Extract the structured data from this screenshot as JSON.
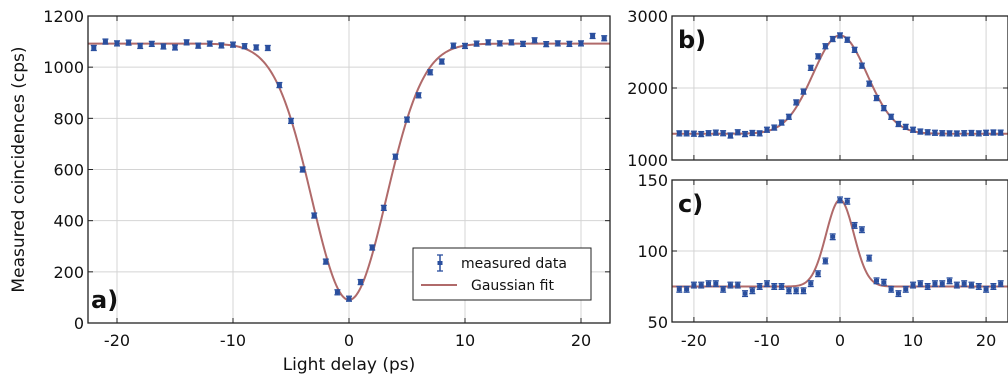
{
  "chart_data": [
    {
      "id": "a",
      "type": "scatter",
      "panel_label": "a)",
      "xlabel": "Light delay (ps)",
      "ylabel": "Measured coincidences (cps)",
      "xlim": [
        -22.5,
        22.5
      ],
      "ylim": [
        0,
        1200
      ],
      "xticks": [
        -20,
        -10,
        0,
        10,
        20
      ],
      "xtick_labels": [
        "-20",
        "-10",
        "0",
        "10",
        "20"
      ],
      "yticks": [
        0,
        200,
        400,
        600,
        800,
        1000,
        1200
      ],
      "ytick_labels": [
        "0",
        "200",
        "400",
        "600",
        "800",
        "1000",
        "1200"
      ],
      "grid": true,
      "legend_position": "bottom-right",
      "legend": [
        "measured data",
        "Gaussian fit"
      ],
      "series": [
        {
          "name": "measured data",
          "style": "errorbar",
          "color": "#2a4f9e",
          "x": [
            -22,
            -21,
            -20,
            -19,
            -18,
            -17,
            -16,
            -15,
            -14,
            -13,
            -12,
            -11,
            -10,
            -9,
            -8,
            -7,
            -6,
            -5,
            -4,
            -3,
            -2,
            -1,
            0,
            1,
            2,
            3,
            4,
            5,
            6,
            7,
            8,
            9,
            10,
            11,
            12,
            13,
            14,
            15,
            16,
            17,
            18,
            19,
            20,
            21,
            22
          ],
          "y": [
            1075,
            1100,
            1093,
            1096,
            1083,
            1091,
            1081,
            1077,
            1097,
            1084,
            1092,
            1085,
            1088,
            1082,
            1077,
            1075,
            930,
            790,
            600,
            420,
            240,
            120,
            95,
            160,
            295,
            450,
            650,
            795,
            890,
            980,
            1022,
            1084,
            1083,
            1092,
            1097,
            1093,
            1097,
            1091,
            1105,
            1090,
            1093,
            1091,
            1093,
            1122,
            1113
          ],
          "yerr": 7
        },
        {
          "name": "Gaussian fit",
          "style": "line",
          "color": "#b06a6a",
          "model": "gaussian",
          "baseline": 1092,
          "amplitude": -1002,
          "center": 0,
          "sigma": 3.2
        }
      ]
    },
    {
      "id": "b",
      "type": "scatter",
      "panel_label": "b)",
      "xlabel": "",
      "ylabel": "",
      "xlim": [
        -23,
        23
      ],
      "ylim": [
        1000,
        3000
      ],
      "xticks": [
        -20,
        -10,
        0,
        10,
        20
      ],
      "yticks": [
        1000,
        2000,
        3000
      ],
      "ytick_labels": [
        "1000",
        "2000",
        "3000"
      ],
      "grid": true,
      "series": [
        {
          "name": "",
          "style": "errorbar",
          "color": "#2a4f9e",
          "x": [
            -22,
            -21,
            -20,
            -19,
            -18,
            -17,
            -16,
            -15,
            -14,
            -13,
            -12,
            -11,
            -10,
            -9,
            -8,
            -7,
            -6,
            -5,
            -4,
            -3,
            -2,
            -1,
            0,
            1,
            2,
            3,
            4,
            5,
            6,
            7,
            8,
            9,
            10,
            11,
            12,
            13,
            14,
            15,
            16,
            17,
            18,
            19,
            20,
            21,
            22
          ],
          "y": [
            1370,
            1370,
            1365,
            1360,
            1372,
            1380,
            1372,
            1340,
            1385,
            1360,
            1375,
            1370,
            1420,
            1450,
            1520,
            1600,
            1800,
            1950,
            2280,
            2440,
            2580,
            2680,
            2730,
            2670,
            2530,
            2310,
            2060,
            1860,
            1720,
            1600,
            1500,
            1460,
            1420,
            1395,
            1385,
            1378,
            1372,
            1370,
            1368,
            1372,
            1375,
            1370,
            1378,
            1382,
            1380
          ],
          "yerr": 12
        },
        {
          "name": "",
          "style": "line",
          "color": "#b06a6a",
          "model": "gaussian",
          "baseline": 1365,
          "amplitude": 1365,
          "center": 0,
          "sigma": 3.7
        }
      ]
    },
    {
      "id": "c",
      "type": "scatter",
      "panel_label": "c)",
      "xlabel": "",
      "ylabel": "",
      "xlim": [
        -23,
        23
      ],
      "ylim": [
        50,
        150
      ],
      "xticks": [
        -20,
        -10,
        0,
        10,
        20
      ],
      "xtick_labels": [
        "-20",
        "-10",
        "0",
        "10",
        "20"
      ],
      "yticks": [
        50,
        100,
        150
      ],
      "ytick_labels": [
        "50",
        "100",
        "150"
      ],
      "grid": true,
      "series": [
        {
          "name": "",
          "style": "errorbar",
          "color": "#2a4f9e",
          "x": [
            -22,
            -21,
            -20,
            -19,
            -18,
            -17,
            -16,
            -15,
            -14,
            -13,
            -12,
            -11,
            -10,
            -9,
            -8,
            -7,
            -6,
            -5,
            -4,
            -3,
            -2,
            -1,
            0,
            1,
            2,
            3,
            4,
            5,
            6,
            7,
            8,
            9,
            10,
            11,
            12,
            13,
            14,
            15,
            16,
            17,
            18,
            19,
            20,
            21,
            22
          ],
          "y": [
            73,
            73,
            76,
            76,
            77,
            77,
            73,
            76,
            76,
            70,
            72,
            75,
            77,
            75,
            75,
            72,
            72,
            72,
            77,
            84,
            93,
            110,
            136,
            135,
            118,
            115,
            95,
            79,
            78,
            73,
            70,
            73,
            76,
            77,
            75,
            77,
            77,
            79,
            76,
            77,
            76,
            75,
            73,
            75,
            77
          ],
          "yerr": 2
        },
        {
          "name": "",
          "style": "line",
          "color": "#b06a6a",
          "model": "gaussian",
          "baseline": 75,
          "amplitude": 61,
          "center": 0,
          "sigma": 1.9
        }
      ]
    }
  ]
}
